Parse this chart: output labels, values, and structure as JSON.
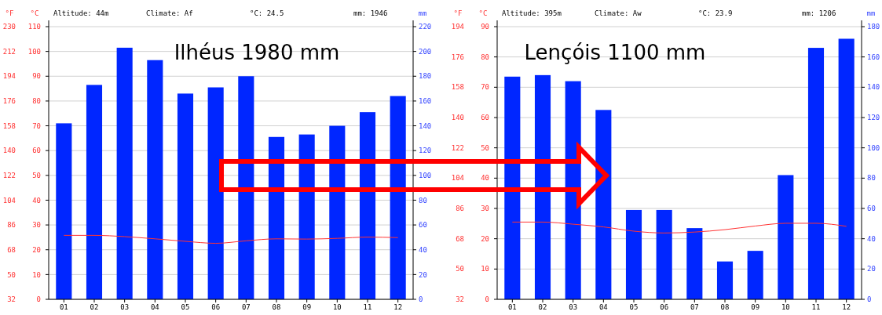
{
  "chart_data": [
    {
      "type": "bar",
      "title": "Ilhéus 1980 mm",
      "ylabel": "°C",
      "y2label": "mm",
      "y3label": "°F",
      "annotations": [
        "Altitude: 44m",
        "Climate: Af",
        "°C: 24.5",
        "mm: 1946"
      ],
      "categories": [
        "01",
        "02",
        "03",
        "04",
        "05",
        "06",
        "07",
        "08",
        "09",
        "10",
        "11",
        "12"
      ],
      "series": [
        {
          "axis": "y2",
          "color": "#0026ff",
          "values": [
            142,
            173,
            203,
            193,
            166,
            171,
            180,
            131,
            133,
            140,
            151,
            164
          ]
        },
        {
          "type": "line",
          "axis": "y",
          "color": "#ff3333",
          "values": [
            25.8,
            25.8,
            25.3,
            24.4,
            23.4,
            22.6,
            23.6,
            24.4,
            24.3,
            24.6,
            25.1,
            24.9
          ]
        }
      ],
      "ylim": [
        0,
        110
      ],
      "yticks": [
        0,
        10,
        20,
        30,
        40,
        50,
        60,
        70,
        80,
        90,
        100,
        110
      ],
      "y2lim": [
        0,
        220
      ],
      "y2ticks": [
        0,
        20,
        40,
        60,
        80,
        100,
        120,
        140,
        160,
        180,
        200,
        220
      ],
      "y3lim": [
        32,
        230
      ],
      "y3ticks": [
        32,
        50,
        68,
        86,
        104,
        122,
        140,
        158,
        176,
        194,
        212,
        230
      ],
      "grid": "y"
    },
    {
      "type": "bar",
      "title": "Lençóis 1100 mm",
      "ylabel": "°C",
      "y2label": "mm",
      "y3label": "°F",
      "annotations": [
        "Altitude: 395m",
        "Climate: Aw",
        "°C: 23.9",
        "mm: 1206"
      ],
      "categories": [
        "01",
        "02",
        "03",
        "04",
        "05",
        "06",
        "07",
        "08",
        "09",
        "10",
        "11",
        "12"
      ],
      "series": [
        {
          "axis": "y2",
          "color": "#0026ff",
          "values": [
            147,
            148,
            144,
            125,
            59,
            59,
            47,
            25,
            32,
            82,
            166,
            172
          ]
        },
        {
          "type": "line",
          "axis": "y",
          "color": "#ff3333",
          "values": [
            25.5,
            25.5,
            24.8,
            23.9,
            22.5,
            21.9,
            22.2,
            23.0,
            24.2,
            25.1,
            25.1,
            24.1
          ]
        }
      ],
      "ylim": [
        0,
        90
      ],
      "yticks": [
        0,
        10,
        20,
        30,
        40,
        50,
        60,
        70,
        80,
        90
      ],
      "y2lim": [
        0,
        180
      ],
      "y2ticks": [
        0,
        20,
        40,
        60,
        80,
        100,
        120,
        140,
        160,
        180
      ],
      "y3lim": [
        32,
        194
      ],
      "y3ticks": [
        32,
        50,
        68,
        86,
        104,
        122,
        140,
        158,
        176,
        194
      ],
      "grid": "y"
    }
  ]
}
